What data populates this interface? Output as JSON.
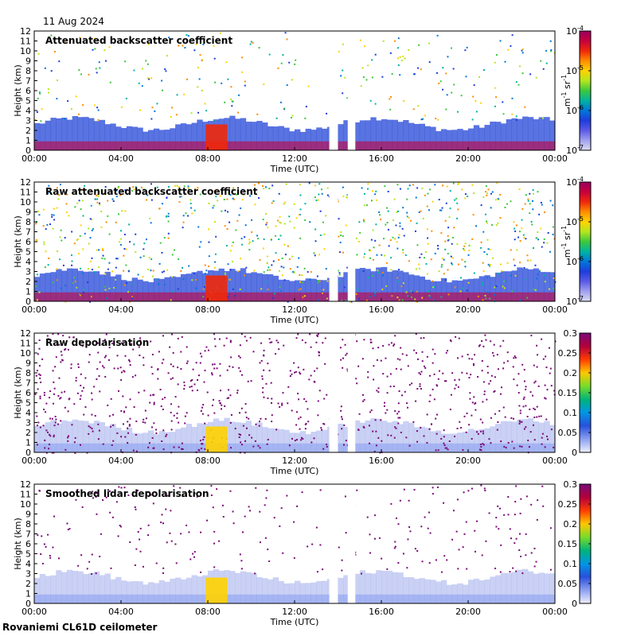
{
  "figure": {
    "date": "11 Aug 2024",
    "site": "Rovaniemi CL61D ceilometer",
    "colors": {
      "noise_fill": "#c8c8c8",
      "low_cloud": "#3c5adc",
      "haze": "#b4bef0",
      "text": "#000000"
    }
  },
  "chart_data": [
    {
      "type": "heatmap",
      "title": "Attenuated backscatter coefficient",
      "xlabel": "Time (UTC)",
      "ylabel": "Height (km)",
      "xticks": [
        "00:00",
        "04:00",
        "08:00",
        "12:00",
        "16:00",
        "20:00",
        "00:00"
      ],
      "yticks": [
        "0",
        "1",
        "2",
        "3",
        "4",
        "5",
        "6",
        "7",
        "8",
        "9",
        "10",
        "11",
        "12"
      ],
      "xlim_hours": [
        0,
        24
      ],
      "ylim_km": [
        0,
        12
      ],
      "data_gaps_hours": [
        [
          13.6,
          14.0
        ],
        [
          14.45,
          14.8
        ]
      ],
      "colorbar": {
        "scale": "log",
        "ticks": [
          "10",
          "10",
          "10",
          "10"
        ],
        "tick_exponents": [
          "-7",
          "-6",
          "-5",
          "-4"
        ],
        "label": "m",
        "label_exp1": "-1",
        "label_mid": " sr",
        "label_exp2": "-1"
      }
    },
    {
      "type": "heatmap",
      "title": "Raw attenuated backscatter coefficient",
      "xlabel": "Time (UTC)",
      "ylabel": "Height (km)",
      "xticks": [
        "00:00",
        "04:00",
        "08:00",
        "12:00",
        "16:00",
        "20:00",
        "00:00"
      ],
      "yticks": [
        "0",
        "1",
        "2",
        "3",
        "4",
        "5",
        "6",
        "7",
        "8",
        "9",
        "10",
        "11",
        "12"
      ],
      "xlim_hours": [
        0,
        24
      ],
      "ylim_km": [
        0,
        12
      ],
      "data_gaps_hours": [
        [
          13.6,
          14.0
        ],
        [
          14.45,
          14.8
        ]
      ],
      "colorbar": {
        "scale": "log",
        "ticks": [
          "10",
          "10",
          "10",
          "10"
        ],
        "tick_exponents": [
          "-7",
          "-6",
          "-5",
          "-4"
        ],
        "label": "m",
        "label_exp1": "-1",
        "label_mid": " sr",
        "label_exp2": "-1"
      }
    },
    {
      "type": "heatmap",
      "title": "Raw depolarisation",
      "xlabel": "Time (UTC)",
      "ylabel": "Height (km)",
      "xticks": [
        "00:00",
        "04:00",
        "08:00",
        "12:00",
        "16:00",
        "20:00",
        "00:00"
      ],
      "yticks": [
        "0",
        "1",
        "2",
        "3",
        "4",
        "5",
        "6",
        "7",
        "8",
        "9",
        "10",
        "11",
        "12"
      ],
      "xlim_hours": [
        0,
        24
      ],
      "ylim_km": [
        0,
        12
      ],
      "data_gaps_hours": [
        [
          13.6,
          14.0
        ],
        [
          14.45,
          14.8
        ]
      ],
      "colorbar": {
        "scale": "linear",
        "ticks": [
          "0",
          "0.05",
          "0.1",
          "0.15",
          "0.2",
          "0.25",
          "0.3"
        ],
        "range": [
          0,
          0.3
        ]
      }
    },
    {
      "type": "heatmap",
      "title": "Smoothed lidar depolarisation",
      "xlabel": "Time (UTC)",
      "ylabel": "Height (km)",
      "xticks": [
        "00:00",
        "04:00",
        "08:00",
        "12:00",
        "16:00",
        "20:00",
        "00:00"
      ],
      "yticks": [
        "0",
        "1",
        "2",
        "3",
        "4",
        "5",
        "6",
        "7",
        "8",
        "9",
        "10",
        "11",
        "12"
      ],
      "xlim_hours": [
        0,
        24
      ],
      "ylim_km": [
        0,
        12
      ],
      "data_gaps_hours": [
        [
          13.6,
          14.0
        ],
        [
          14.45,
          14.8
        ]
      ],
      "colorbar": {
        "scale": "linear",
        "ticks": [
          "0",
          "0.05",
          "0.1",
          "0.15",
          "0.2",
          "0.25",
          "0.3"
        ],
        "range": [
          0,
          0.3
        ]
      }
    }
  ]
}
